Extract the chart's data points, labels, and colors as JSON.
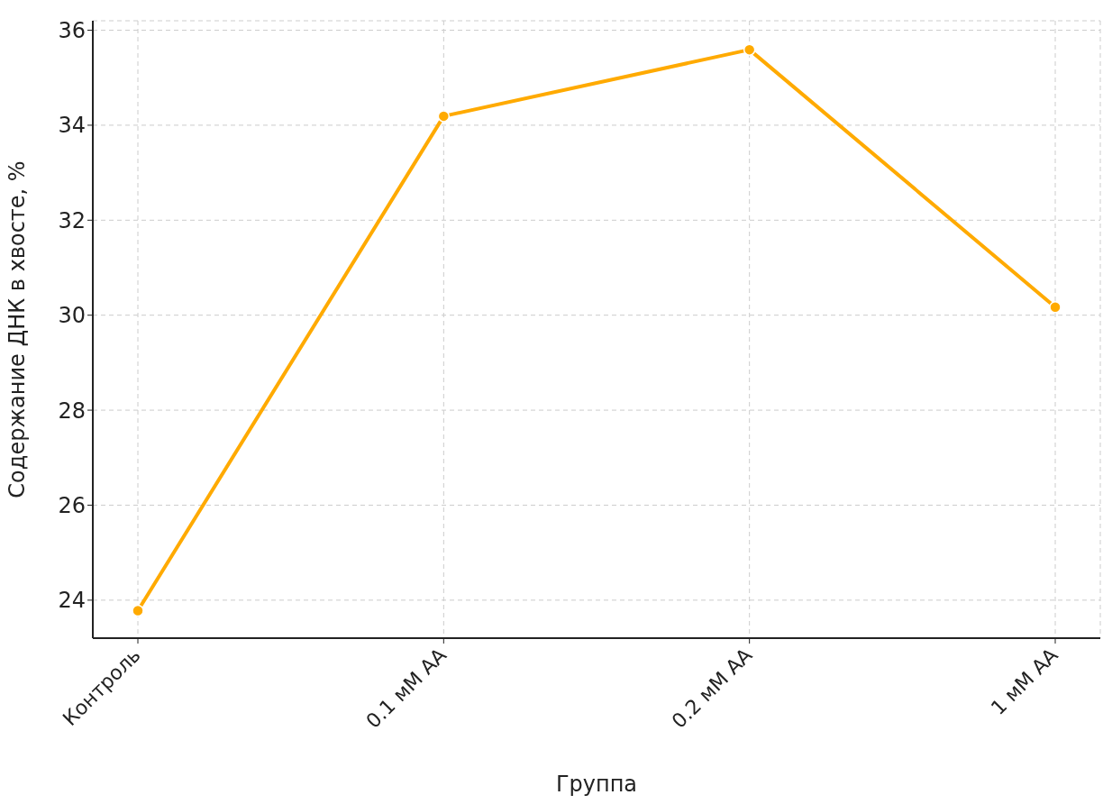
{
  "chart_data": {
    "type": "line",
    "xlabel": "Группа",
    "ylabel": "Содержание ДНК в хвосте, %",
    "categories": [
      "Контроль",
      "0.1 мМ АА",
      "0.2 мМ АА",
      "1 мМ АА"
    ],
    "series": [
      {
        "color": "#ffaa00",
        "values": [
          23.78,
          34.19,
          35.59,
          30.17
        ]
      }
    ],
    "ylim": [
      23.2,
      36.2
    ],
    "yticks": [
      24,
      26,
      28,
      30,
      32,
      34,
      36
    ],
    "grid": true,
    "marker": "circle",
    "line_style": "solid"
  }
}
